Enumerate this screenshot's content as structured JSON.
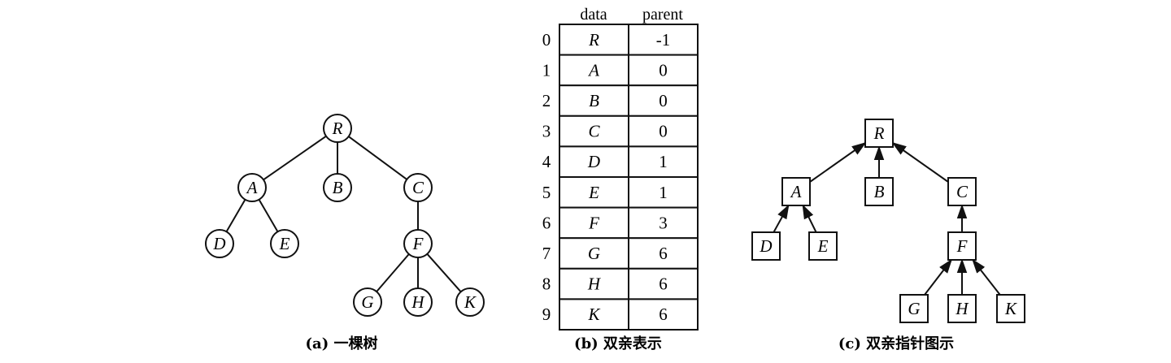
{
  "tree": {
    "caption": "(a) 一棵树",
    "nodes": [
      "R",
      "A",
      "B",
      "C",
      "D",
      "E",
      "F",
      "G",
      "H",
      "K"
    ],
    "edges": [
      [
        "R",
        "A"
      ],
      [
        "R",
        "B"
      ],
      [
        "R",
        "C"
      ],
      [
        "A",
        "D"
      ],
      [
        "A",
        "E"
      ],
      [
        "C",
        "F"
      ],
      [
        "F",
        "G"
      ],
      [
        "F",
        "H"
      ],
      [
        "F",
        "K"
      ]
    ]
  },
  "table": {
    "caption": "(b) 双亲表示",
    "headers": {
      "data": "data",
      "parent": "parent"
    },
    "rows": [
      {
        "index": "0",
        "data": "R",
        "parent": "-1"
      },
      {
        "index": "1",
        "data": "A",
        "parent": "0"
      },
      {
        "index": "2",
        "data": "B",
        "parent": "0"
      },
      {
        "index": "3",
        "data": "C",
        "parent": "0"
      },
      {
        "index": "4",
        "data": "D",
        "parent": "1"
      },
      {
        "index": "5",
        "data": "E",
        "parent": "1"
      },
      {
        "index": "6",
        "data": "F",
        "parent": "3"
      },
      {
        "index": "7",
        "data": "G",
        "parent": "6"
      },
      {
        "index": "8",
        "data": "H",
        "parent": "6"
      },
      {
        "index": "9",
        "data": "K",
        "parent": "6"
      }
    ]
  },
  "pointer": {
    "caption": "(c) 双亲指针图示"
  }
}
